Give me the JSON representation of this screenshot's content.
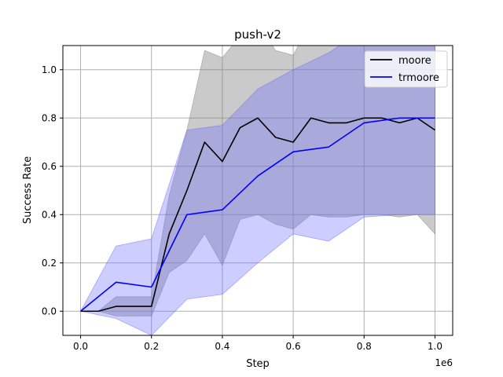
{
  "chart_data": {
    "type": "line",
    "title": "push-v2",
    "xlabel": "Step",
    "ylabel": "Success Rate",
    "x_offset_label": "1e6",
    "xlim": [
      -0.05,
      1.05
    ],
    "ylim": [
      -0.1,
      1.1
    ],
    "xticks": [
      0.0,
      0.2,
      0.4,
      0.6,
      0.8,
      1.0
    ],
    "yticks": [
      0.0,
      0.2,
      0.4,
      0.6,
      0.8,
      1.0
    ],
    "xtick_labels": [
      "0.0",
      "0.2",
      "0.4",
      "0.6",
      "0.8",
      "1.0"
    ],
    "ytick_labels": [
      "0.0",
      "0.2",
      "0.4",
      "0.6",
      "0.8",
      "1.0"
    ],
    "grid": true,
    "legend_position": "top-right",
    "series": [
      {
        "name": "moore",
        "color": "#000000",
        "band_color": "#808080",
        "x": [
          0.0,
          0.05,
          0.1,
          0.15,
          0.2,
          0.25,
          0.3,
          0.35,
          0.4,
          0.45,
          0.5,
          0.55,
          0.6,
          0.65,
          0.7,
          0.75,
          0.8,
          0.85,
          0.9,
          0.95,
          1.0
        ],
        "y": [
          0.0,
          0.0,
          0.02,
          0.02,
          0.02,
          0.32,
          0.5,
          0.7,
          0.62,
          0.76,
          0.8,
          0.72,
          0.7,
          0.8,
          0.78,
          0.78,
          0.8,
          0.8,
          0.78,
          0.8,
          0.75
        ],
        "upper": [
          0.0,
          0.0,
          0.06,
          0.06,
          0.06,
          0.48,
          0.75,
          1.08,
          1.05,
          1.14,
          1.2,
          1.08,
          1.06,
          1.2,
          1.17,
          1.17,
          1.2,
          1.2,
          1.17,
          1.2,
          1.2
        ],
        "lower": [
          0.0,
          0.0,
          -0.02,
          -0.02,
          -0.02,
          0.16,
          0.21,
          0.32,
          0.19,
          0.38,
          0.4,
          0.36,
          0.34,
          0.4,
          0.39,
          0.39,
          0.4,
          0.4,
          0.39,
          0.4,
          0.32
        ]
      },
      {
        "name": "trmoore",
        "color": "#0000ff",
        "band_color": "#6666ff",
        "x": [
          0.0,
          0.1,
          0.2,
          0.3,
          0.4,
          0.5,
          0.6,
          0.7,
          0.8,
          0.9,
          1.0
        ],
        "y": [
          0.0,
          0.12,
          0.1,
          0.4,
          0.42,
          0.56,
          0.66,
          0.68,
          0.78,
          0.8,
          0.8
        ],
        "upper": [
          0.0,
          0.27,
          0.3,
          0.75,
          0.77,
          0.92,
          1.0,
          1.07,
          1.17,
          1.2,
          1.2
        ],
        "lower": [
          0.0,
          -0.03,
          -0.1,
          0.05,
          0.07,
          0.2,
          0.32,
          0.29,
          0.39,
          0.4,
          0.4
        ]
      }
    ]
  }
}
